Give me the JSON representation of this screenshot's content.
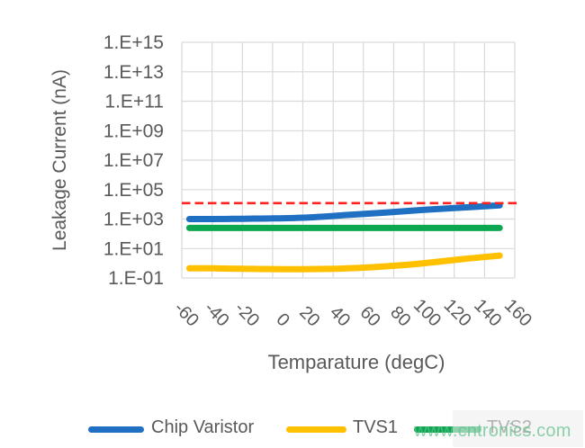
{
  "chart_data": {
    "type": "line",
    "title": "",
    "xlabel": "Temparature (degC)",
    "ylabel": "Leakage Current (nA)",
    "y_scale": "log",
    "xlim": [
      -60,
      160
    ],
    "ylim": [
      0.1,
      1000000000000000.0
    ],
    "grid": true,
    "grid_color": "#d9d9d9",
    "tick_color": "#595959",
    "legend_position": "bottom",
    "x": [
      -55,
      -40,
      -20,
      0,
      25,
      50,
      75,
      100,
      125,
      150
    ],
    "series": [
      {
        "name": "Chip Varistor",
        "color": "#1f6fc2",
        "values": [
          1000,
          1000,
          1050,
          1100,
          1300,
          1900,
          2800,
          4200,
          6000,
          8500
        ]
      },
      {
        "name": "TVS1",
        "color": "#ffc000",
        "values": [
          0.45,
          0.45,
          0.42,
          0.4,
          0.4,
          0.45,
          0.62,
          1.0,
          1.9,
          3.3
        ]
      },
      {
        "name": "TVS2",
        "color": "#0ca750",
        "values": [
          250,
          250,
          250,
          250,
          250,
          250,
          250,
          250,
          250,
          250
        ]
      }
    ],
    "limit_line": {
      "name": "leakage-limit",
      "value": 12000,
      "color": "#ff2020",
      "style": "dashed"
    },
    "x_ticks": [
      -60,
      -40,
      -20,
      0,
      20,
      40,
      60,
      80,
      100,
      120,
      140,
      160
    ],
    "y_ticks": [
      {
        "label": "1.E+15",
        "value": 1000000000000000.0
      },
      {
        "label": "1.E+13",
        "value": 10000000000000.0
      },
      {
        "label": "1.E+11",
        "value": 100000000000.0
      },
      {
        "label": "1.E+09",
        "value": 1000000000.0
      },
      {
        "label": "1.E+07",
        "value": 10000000.0
      },
      {
        "label": "1.E+05",
        "value": 100000.0
      },
      {
        "label": "1.E+03",
        "value": 1000.0
      },
      {
        "label": "1.E+01",
        "value": 10
      },
      {
        "label": "1.E-01",
        "value": 0.1
      }
    ]
  },
  "legend": {
    "items": [
      {
        "label": "Chip Varistor",
        "color": "#1f6fc2"
      },
      {
        "label": "TVS1",
        "color": "#ffc000"
      },
      {
        "label": "TVS2",
        "color": "#0ca750"
      }
    ]
  },
  "watermark": {
    "text": "www.cntronics.com",
    "color": "#5fc08a"
  }
}
